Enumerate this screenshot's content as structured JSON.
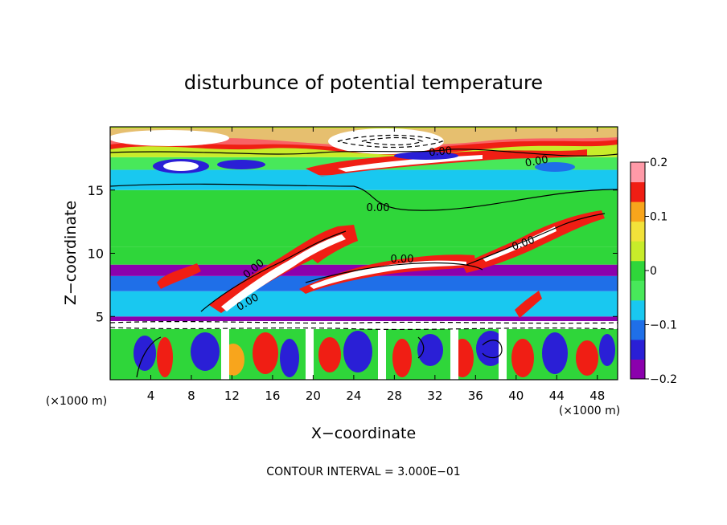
{
  "chart_data": {
    "type": "heatmap",
    "title": "disturbunce of potential temperature",
    "xlabel": "X−coordinate",
    "ylabel": "Z−coordinate",
    "x_unit_left": "(×1000 m)",
    "x_unit_right": "(×1000 m)",
    "xlim": [
      0,
      50
    ],
    "ylim": [
      0,
      20
    ],
    "x_ticks": [
      4,
      8,
      12,
      16,
      20,
      24,
      28,
      32,
      36,
      40,
      44,
      48
    ],
    "y_ticks": [
      5,
      10,
      15
    ],
    "colorbar": {
      "min": -0.2,
      "max": 0.2,
      "ticks": [
        0.2,
        0.1,
        0,
        -0.1,
        -0.2
      ],
      "tick_labels": [
        "0.2",
        "0.1",
        "0",
        "−0.1",
        "−0.2"
      ],
      "colors": [
        "#8b00ad",
        "#2a1fd6",
        "#1f6fe8",
        "#19c8f0",
        "#48e85a",
        "#2fd63a",
        "#c8ec2a",
        "#f2e23a",
        "#f8a51c",
        "#f01e14",
        "#ff9aa8"
      ]
    },
    "contour_labels": [
      "0.00",
      "0.00",
      "0.00",
      "0.00",
      "0.00",
      "0.00",
      "0.00"
    ],
    "bands": [
      {
        "z0": 0.0,
        "z1": 4.3,
        "value": 0.0
      },
      {
        "z0": 4.3,
        "z1": 5.0,
        "value": -0.2
      },
      {
        "z0": 5.0,
        "z1": 7.0,
        "value": -0.09
      },
      {
        "z0": 7.0,
        "z1": 8.2,
        "value": -0.12
      },
      {
        "z0": 8.2,
        "z1": 9.1,
        "value": -0.19
      },
      {
        "z0": 9.1,
        "z1": 10.5,
        "value": 0.01
      },
      {
        "z0": 10.5,
        "z1": 15.0,
        "value": 0.0
      },
      {
        "z0": 15.0,
        "z1": 16.6,
        "value": -0.06
      },
      {
        "z0": 16.6,
        "z1": 17.6,
        "value": -0.03
      },
      {
        "z0": 17.6,
        "z1": 20.0,
        "value": 0.02
      }
    ]
  },
  "footer": {
    "contour_interval": "CONTOUR INTERVAL = 3.000E−01"
  }
}
